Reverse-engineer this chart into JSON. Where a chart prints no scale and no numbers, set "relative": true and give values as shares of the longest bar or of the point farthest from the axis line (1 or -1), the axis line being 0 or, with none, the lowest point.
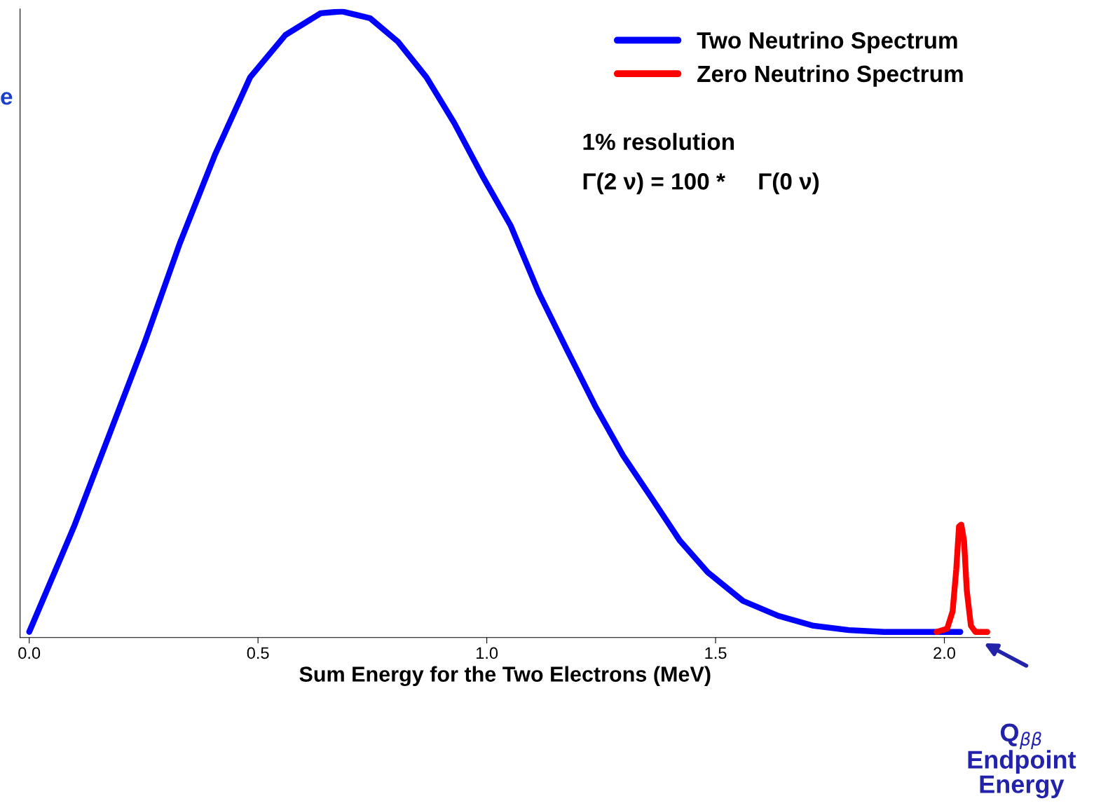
{
  "chart_data": {
    "type": "line",
    "relative": true,
    "xlabel": "Sum Energy for the Two Electrons (MeV)",
    "xlim": [
      -0.02,
      2.1
    ],
    "xticks": [
      {
        "value": 0,
        "label": "0.0"
      },
      {
        "value": 0.5,
        "label": "0.5"
      },
      {
        "value": 1,
        "label": "1.0"
      },
      {
        "value": 1.5,
        "label": "1.5"
      },
      {
        "value": 2,
        "label": "2.0"
      }
    ],
    "tick_labels": "x",
    "legend": "top right",
    "grid": false,
    "line_style": "solid",
    "series": [
      {
        "name": "Two Neutrino Spectrum",
        "color": "#0000ff",
        "x": [
          0,
          0.098,
          0.175,
          0.252,
          0.329,
          0.406,
          0.483,
          0.56,
          0.637,
          0.683,
          0.745,
          0.806,
          0.868,
          0.929,
          0.991,
          1.052,
          1.114,
          1.175,
          1.237,
          1.298,
          1.36,
          1.422,
          1.483,
          1.56,
          1.637,
          1.714,
          1.791,
          1.868,
          2.035
        ],
        "values": [
          0,
          0.17,
          0.318,
          0.466,
          0.626,
          0.769,
          0.894,
          0.962,
          0.997,
          1.0,
          0.989,
          0.951,
          0.894,
          0.82,
          0.734,
          0.655,
          0.546,
          0.455,
          0.364,
          0.284,
          0.216,
          0.147,
          0.096,
          0.05,
          0.026,
          0.01,
          0.003,
          0,
          0
        ]
      },
      {
        "name": "Zero Neutrino Spectrum",
        "color": "#ff0000",
        "x": [
          1.983,
          2.006,
          2.018,
          2.026,
          2.032,
          2.037,
          2.043,
          2.049,
          2.058,
          2.068,
          2.094
        ],
        "values": [
          0,
          0.005,
          0.033,
          0.101,
          0.17,
          0.173,
          0.147,
          0.067,
          0.01,
          0,
          0
        ]
      }
    ],
    "annotations": [
      "e",
      "1% resolution",
      "Γ(2 ν) = 100 *     Γ(0 ν)",
      "Q$_{ββ}$\nEndpoint\nEnergy"
    ]
  }
}
